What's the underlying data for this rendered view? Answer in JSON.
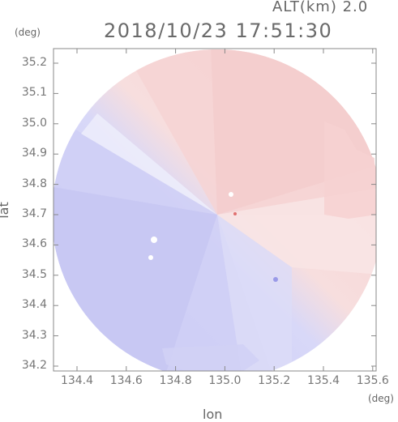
{
  "header": {
    "altitude_label": "ALT(km)  2.0",
    "timestamp": "2018/10/23  17:51:30"
  },
  "axes": {
    "y_unit": "(deg)",
    "x_unit": "(deg)",
    "y_label": "lat",
    "x_label": "lon",
    "y_ticks": [
      "35.2",
      "35.1",
      "35.0",
      "34.9",
      "34.8",
      "34.7",
      "34.6",
      "34.5",
      "34.4",
      "34.3",
      "34.2"
    ],
    "x_ticks": [
      "134.4",
      "134.6",
      "134.8",
      "135.0",
      "135.2",
      "135.4",
      "135.6"
    ]
  },
  "colors": {
    "approaching": "#c9c9f5",
    "receding": "#f6cfcf",
    "neutral": "#eeeeff",
    "axis": "#888888"
  }
}
